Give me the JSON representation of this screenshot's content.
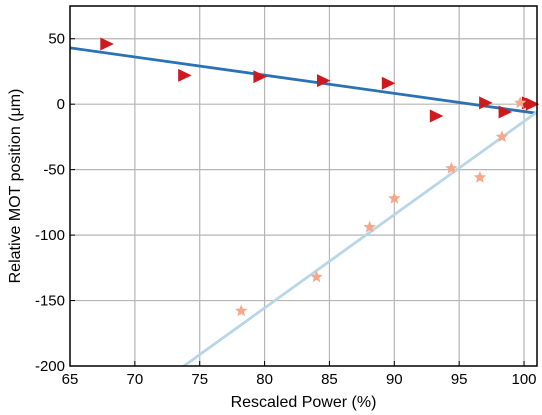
{
  "chart_data": {
    "type": "scatter",
    "xlabel": "Rescaled Power (%)",
    "ylabel": "Relative MOT position (μm)",
    "xlim": [
      65,
      101
    ],
    "ylim": [
      -200,
      75
    ],
    "xticks": [
      65,
      70,
      75,
      80,
      85,
      90,
      95,
      100
    ],
    "yticks": [
      -200,
      -150,
      -100,
      -50,
      0,
      50
    ],
    "grid": true,
    "legend": "none",
    "series": [
      {
        "marker": "triangle-right",
        "color": "#cc1a1f",
        "x": [
          67.8,
          73.8,
          79.6,
          84.5,
          89.5,
          93.2,
          97.0,
          98.5,
          100.3,
          100.6
        ],
        "y": [
          46,
          22,
          21,
          18,
          16,
          -9,
          1,
          -6,
          1,
          0
        ]
      },
      {
        "marker": "star",
        "color": "#f5a98a",
        "x": [
          78.2,
          84.0,
          88.1,
          90.0,
          94.4,
          96.6,
          98.3,
          99.7
        ],
        "y": [
          -158,
          -132,
          -94,
          -72,
          -49,
          -56,
          -25,
          1
        ]
      }
    ],
    "fit_lines": [
      {
        "color": "#2a72b5",
        "x": [
          65,
          101
        ],
        "y": [
          43,
          -7
        ]
      },
      {
        "color": "#b8d6e8",
        "x": [
          73.5,
          101
        ],
        "y": [
          -202,
          -6
        ]
      }
    ]
  }
}
